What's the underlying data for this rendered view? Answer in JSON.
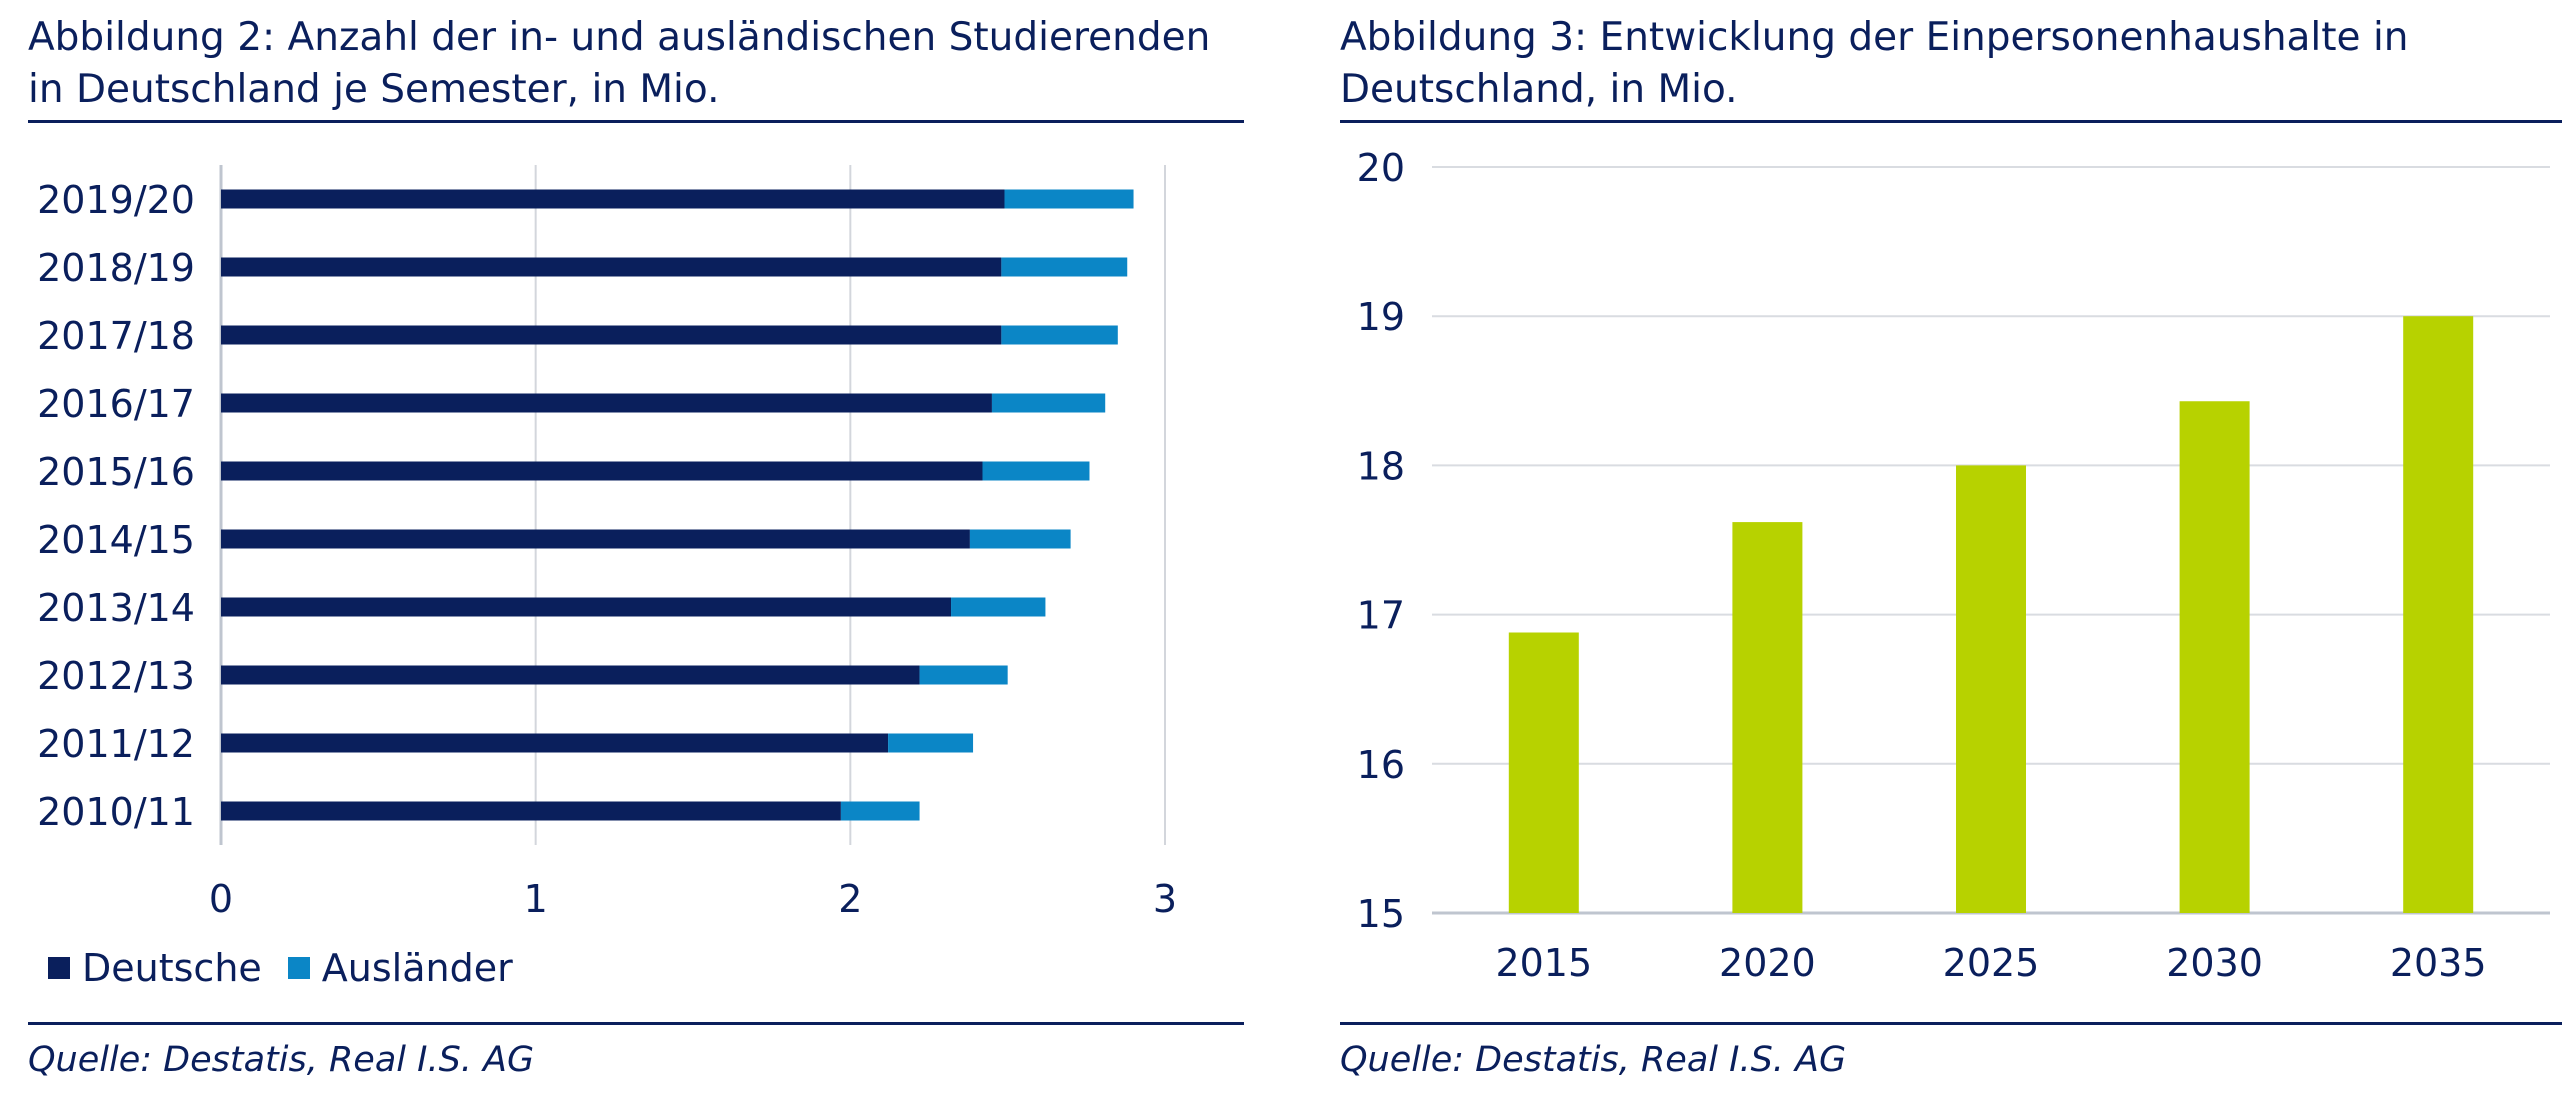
{
  "chart_data": [
    {
      "type": "bar",
      "orientation": "horizontal",
      "stacked": true,
      "title": "Abbildung 2: Anzahl der in- und ausländischen Studierenden in Deutschland je Semester, in Mio.",
      "categories": [
        "2010/11",
        "2011/12",
        "2012/13",
        "2013/14",
        "2014/15",
        "2015/16",
        "2016/17",
        "2017/18",
        "2018/19",
        "2019/20"
      ],
      "series": [
        {
          "name": "Deutsche",
          "color": "#0a1f5c",
          "values": [
            1.97,
            2.12,
            2.22,
            2.32,
            2.38,
            2.42,
            2.45,
            2.48,
            2.48,
            2.49
          ]
        },
        {
          "name": "Ausländer",
          "color": "#0b86c6",
          "values": [
            0.25,
            0.27,
            0.28,
            0.3,
            0.32,
            0.34,
            0.36,
            0.37,
            0.4,
            0.41
          ]
        }
      ],
      "xlim": [
        0,
        3
      ],
      "xticks": [
        "0",
        "1",
        "2",
        "3"
      ],
      "grid": "vertical",
      "legend_position": "bottom-left",
      "source": "Quelle: Destatis, Real I.S. AG"
    },
    {
      "type": "bar",
      "orientation": "vertical",
      "title": "Abbildung 3: Entwicklung der Einpersonenhaushalte in Deutschland, in Mio.",
      "categories": [
        "2015",
        "2020",
        "2025",
        "2030",
        "2035"
      ],
      "values": [
        16.88,
        17.62,
        18.0,
        18.43,
        19.0
      ],
      "color": "#b7d200",
      "ylim": [
        15,
        20
      ],
      "yticks": [
        "15",
        "16",
        "17",
        "18",
        "19",
        "20"
      ],
      "grid": "horizontal",
      "source": "Quelle: Destatis, Real I.S. AG"
    }
  ]
}
